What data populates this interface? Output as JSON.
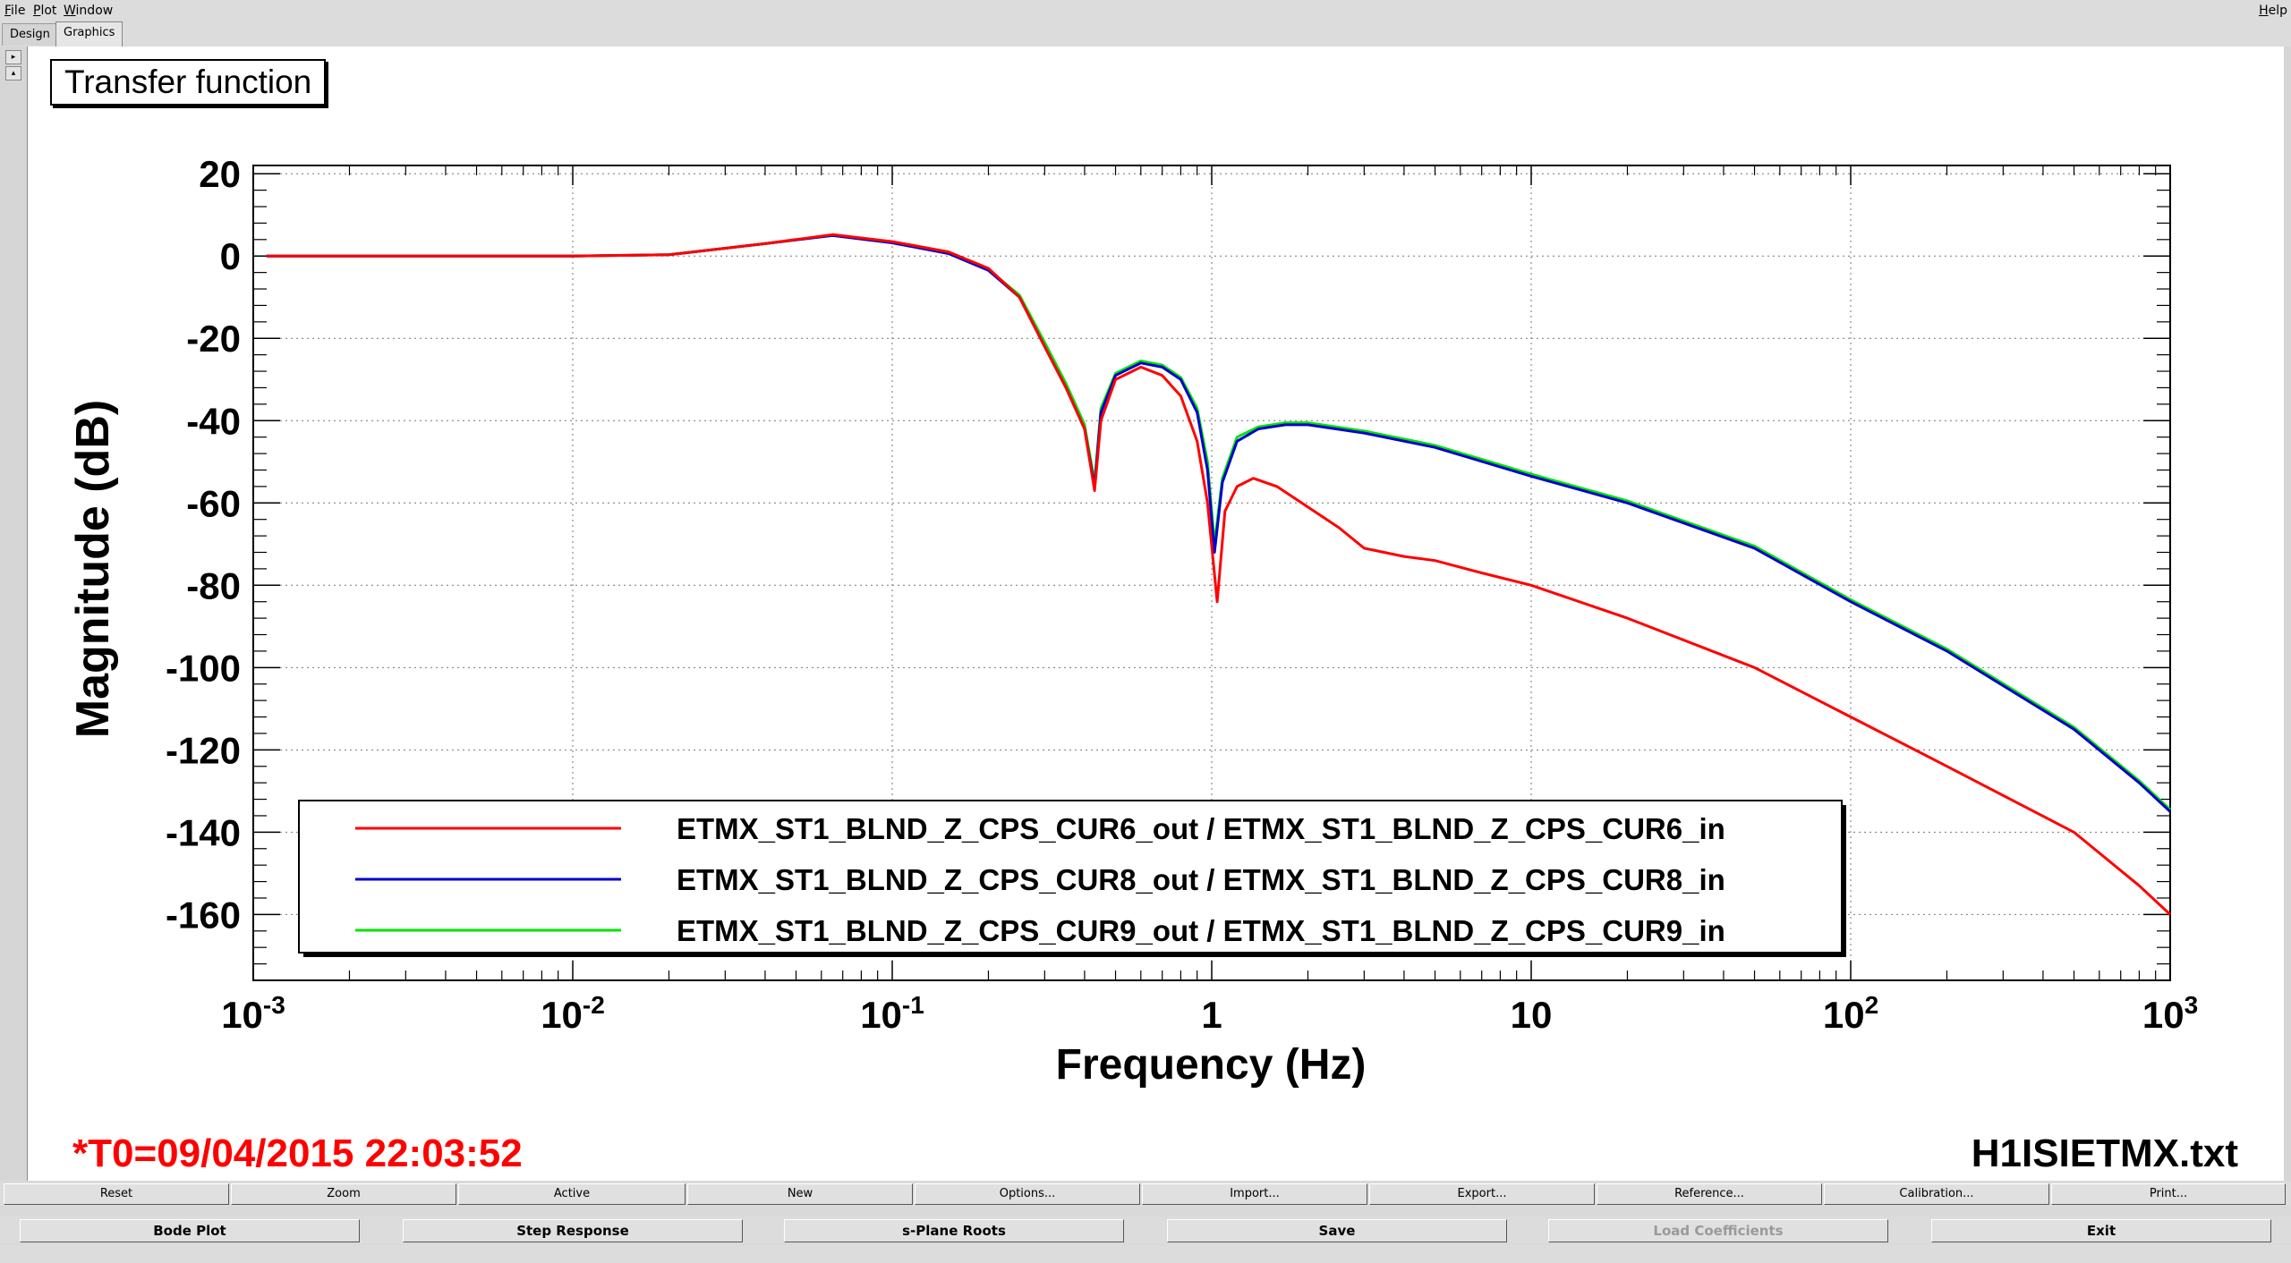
{
  "menubar": {
    "items": [
      {
        "label": "File",
        "mnemonic": "F",
        "rest": "ile"
      },
      {
        "label": "Plot",
        "mnemonic": "P",
        "rest": "lot"
      },
      {
        "label": "Window",
        "mnemonic": "W",
        "rest": "indow"
      }
    ],
    "help": {
      "label": "Help",
      "mnemonic": "H",
      "rest": "elp"
    }
  },
  "tabs": [
    {
      "label": "Design",
      "active": false
    },
    {
      "label": "Graphics",
      "active": true
    }
  ],
  "plot": {
    "title": "Transfer function",
    "timestamp": "*T0=09/04/2015 22:03:52",
    "filename": "H1ISIETMX.txt",
    "colors": {
      "timestamp": "#ff0000"
    }
  },
  "chart_data": {
    "type": "line",
    "xlabel": "Frequency (Hz)",
    "ylabel": "Magnitude (dB)",
    "xscale": "log",
    "xlim": [
      0.001,
      1000
    ],
    "ylim": [
      -176,
      22
    ],
    "grid": true,
    "legend_position": "bottom",
    "x_ticks": [
      {
        "value": 0.001,
        "base": "10",
        "exp": "-3"
      },
      {
        "value": 0.01,
        "base": "10",
        "exp": "-2"
      },
      {
        "value": 0.1,
        "base": "10",
        "exp": "-1"
      },
      {
        "value": 1,
        "base": "1",
        "exp": ""
      },
      {
        "value": 10,
        "base": "10",
        "exp": ""
      },
      {
        "value": 100,
        "base": "10",
        "exp": "2"
      },
      {
        "value": 1000,
        "base": "10",
        "exp": "3"
      }
    ],
    "y_ticks": [
      20,
      0,
      -20,
      -40,
      -60,
      -80,
      -100,
      -120,
      -140,
      -160
    ],
    "series": [
      {
        "name": "ETMX_ST1_BLND_Z_CPS_CUR6_out / ETMX_ST1_BLND_Z_CPS_CUR6_in",
        "color": "#ff0000",
        "points": [
          [
            0.0011,
            0
          ],
          [
            0.01,
            0
          ],
          [
            0.02,
            0.3
          ],
          [
            0.04,
            3
          ],
          [
            0.065,
            5.2
          ],
          [
            0.1,
            3.5
          ],
          [
            0.15,
            1
          ],
          [
            0.2,
            -3
          ],
          [
            0.25,
            -10
          ],
          [
            0.3,
            -22
          ],
          [
            0.35,
            -32
          ],
          [
            0.4,
            -42
          ],
          [
            0.43,
            -57
          ],
          [
            0.45,
            -40
          ],
          [
            0.5,
            -30
          ],
          [
            0.6,
            -27
          ],
          [
            0.7,
            -29
          ],
          [
            0.8,
            -34
          ],
          [
            0.9,
            -45
          ],
          [
            0.97,
            -60
          ],
          [
            1.04,
            -84
          ],
          [
            1.1,
            -62
          ],
          [
            1.2,
            -56
          ],
          [
            1.35,
            -54
          ],
          [
            1.6,
            -56
          ],
          [
            2,
            -61
          ],
          [
            2.5,
            -66
          ],
          [
            3,
            -71
          ],
          [
            4,
            -73
          ],
          [
            5,
            -74
          ],
          [
            7,
            -77
          ],
          [
            10,
            -80
          ],
          [
            20,
            -88
          ],
          [
            50,
            -100
          ],
          [
            100,
            -112
          ],
          [
            200,
            -124
          ],
          [
            500,
            -140
          ],
          [
            800,
            -153
          ],
          [
            1000,
            -160
          ]
        ]
      },
      {
        "name": "ETMX_ST1_BLND_Z_CPS_CUR8_out / ETMX_ST1_BLND_Z_CPS_CUR8_in",
        "color": "#0000cc",
        "points": [
          [
            0.0011,
            0
          ],
          [
            0.01,
            0
          ],
          [
            0.02,
            0.3
          ],
          [
            0.04,
            3
          ],
          [
            0.065,
            5.0
          ],
          [
            0.1,
            3.2
          ],
          [
            0.15,
            0.6
          ],
          [
            0.2,
            -3.5
          ],
          [
            0.25,
            -10
          ],
          [
            0.3,
            -22
          ],
          [
            0.35,
            -32
          ],
          [
            0.4,
            -42
          ],
          [
            0.43,
            -56
          ],
          [
            0.45,
            -38
          ],
          [
            0.5,
            -29
          ],
          [
            0.6,
            -26
          ],
          [
            0.7,
            -27
          ],
          [
            0.8,
            -30
          ],
          [
            0.9,
            -38
          ],
          [
            0.97,
            -52
          ],
          [
            1.02,
            -72
          ],
          [
            1.08,
            -55
          ],
          [
            1.2,
            -45
          ],
          [
            1.4,
            -42
          ],
          [
            1.7,
            -41
          ],
          [
            2,
            -41
          ],
          [
            3,
            -43
          ],
          [
            5,
            -46.5
          ],
          [
            10,
            -53.5
          ],
          [
            20,
            -60
          ],
          [
            50,
            -71
          ],
          [
            100,
            -84
          ],
          [
            200,
            -96
          ],
          [
            500,
            -115
          ],
          [
            800,
            -128
          ],
          [
            1000,
            -135
          ]
        ]
      },
      {
        "name": "ETMX_ST1_BLND_Z_CPS_CUR9_out / ETMX_ST1_BLND_Z_CPS_CUR9_in",
        "color": "#00e600",
        "points": [
          [
            0.0011,
            0
          ],
          [
            0.01,
            0
          ],
          [
            0.02,
            0.3
          ],
          [
            0.04,
            3
          ],
          [
            0.065,
            5.0
          ],
          [
            0.1,
            3.3
          ],
          [
            0.15,
            0.7
          ],
          [
            0.2,
            -3.3
          ],
          [
            0.25,
            -9.5
          ],
          [
            0.3,
            -21
          ],
          [
            0.35,
            -31
          ],
          [
            0.4,
            -41
          ],
          [
            0.43,
            -55
          ],
          [
            0.45,
            -37
          ],
          [
            0.5,
            -28.5
          ],
          [
            0.6,
            -25.5
          ],
          [
            0.7,
            -26.5
          ],
          [
            0.8,
            -29.5
          ],
          [
            0.9,
            -37
          ],
          [
            0.97,
            -50
          ],
          [
            1.02,
            -70
          ],
          [
            1.08,
            -54
          ],
          [
            1.2,
            -44
          ],
          [
            1.4,
            -41.5
          ],
          [
            1.7,
            -40.5
          ],
          [
            2,
            -40.5
          ],
          [
            3,
            -42.5
          ],
          [
            5,
            -46
          ],
          [
            10,
            -53
          ],
          [
            20,
            -59.5
          ],
          [
            50,
            -70.5
          ],
          [
            100,
            -83.5
          ],
          [
            200,
            -95.5
          ],
          [
            500,
            -114.5
          ],
          [
            800,
            -127.5
          ],
          [
            1000,
            -134.5
          ]
        ]
      }
    ]
  },
  "toolbar1": [
    "Reset",
    "Zoom",
    "Active",
    "New",
    "Options...",
    "Import...",
    "Export...",
    "Reference...",
    "Calibration...",
    "Print..."
  ],
  "toolbar2": [
    {
      "label": "Bode Plot",
      "enabled": true
    },
    {
      "label": "Step Response",
      "enabled": true
    },
    {
      "label": "s-Plane Roots",
      "enabled": true
    },
    {
      "label": "Save",
      "enabled": true
    },
    {
      "label": "Load Coefficients",
      "enabled": false
    },
    {
      "label": "Exit",
      "enabled": true
    }
  ]
}
